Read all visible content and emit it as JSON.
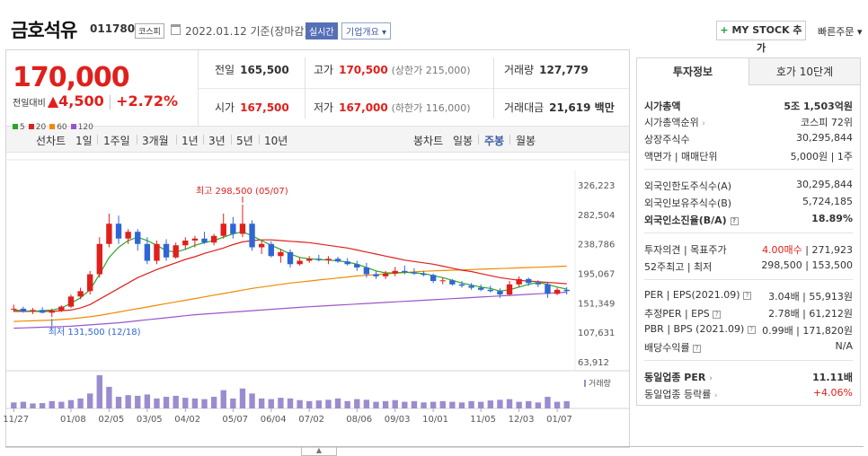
{
  "header": {
    "name": "금호석유",
    "code": "011780",
    "market": "코스피",
    "date": "2022.01.12 기준(장마감)",
    "realtime": "실시간",
    "profile": "기업개요",
    "mystock": "MY STOCK 추가",
    "quickorder": "빠른주문"
  },
  "price": {
    "current": "170,000",
    "change_label": "전일대비",
    "change": "4,500",
    "change_rate": "+2.72%"
  },
  "stats": {
    "prev_label": "전일",
    "prev": "165,500",
    "high_label": "고가",
    "high": "170,500",
    "upper_limit": "(상한가 215,000)",
    "volume_label": "거래량",
    "volume": "127,779",
    "open_label": "시가",
    "open": "167,500",
    "low_label": "저가",
    "low": "167,000",
    "lower_limit": "(하한가 116,000)",
    "amount_label": "거래대금",
    "amount": "21,619 백만"
  },
  "period": {
    "line_chart": "선차트",
    "items": [
      "1일",
      "1주일",
      "3개월",
      "1년",
      "3년",
      "5년",
      "10년"
    ],
    "candle_chart": "봉차트",
    "candle_items": [
      "일봉",
      "주봉",
      "월봉"
    ],
    "selected_candle": "주봉"
  },
  "legend": [
    {
      "label": "5",
      "color": "#2aa52a"
    },
    {
      "label": "20",
      "color": "#e0201c"
    },
    {
      "label": "60",
      "color": "#f08a00"
    },
    {
      "label": "120",
      "color": "#9b55c9"
    }
  ],
  "chart_data": {
    "type": "candlestick",
    "y_ticks": [
      "326,223",
      "282,504",
      "238,786",
      "195,067",
      "151,349",
      "107,631",
      "63,912"
    ],
    "x_ticks": [
      "11/27",
      "01/08",
      "02/05",
      "03/05",
      "04/02",
      "05/07",
      "06/04",
      "07/02",
      "08/06",
      "09/03",
      "10/01",
      "11/05",
      "12/03",
      "01/07"
    ],
    "high_label": "최고 298,500 (05/07)",
    "low_label": "최저 131,500 (12/18)",
    "volume_label": "거래량",
    "ylim": [
      63912,
      326223
    ],
    "up_color": "#e0201c",
    "down_color": "#2f66d6",
    "candles": [
      [
        143000,
        150000,
        139000,
        144000
      ],
      [
        144000,
        147000,
        138000,
        140000
      ],
      [
        140000,
        145000,
        136000,
        142000
      ],
      [
        142000,
        146000,
        137000,
        138000
      ],
      [
        138000,
        144000,
        131500,
        141000
      ],
      [
        141000,
        149000,
        139000,
        147000
      ],
      [
        147000,
        165000,
        145000,
        162000
      ],
      [
        162000,
        175000,
        158000,
        170000
      ],
      [
        170000,
        200000,
        165000,
        195000
      ],
      [
        195000,
        250000,
        190000,
        240000
      ],
      [
        240000,
        285000,
        235000,
        270000
      ],
      [
        270000,
        282000,
        240000,
        248000
      ],
      [
        248000,
        262000,
        240000,
        258000
      ],
      [
        258000,
        262000,
        230000,
        240000
      ],
      [
        240000,
        250000,
        210000,
        215000
      ],
      [
        215000,
        245000,
        210000,
        240000
      ],
      [
        240000,
        247000,
        215000,
        220000
      ],
      [
        220000,
        242000,
        218000,
        238000
      ],
      [
        238000,
        250000,
        232000,
        245000
      ],
      [
        245000,
        252000,
        235000,
        248000
      ],
      [
        248000,
        258000,
        240000,
        242000
      ],
      [
        242000,
        255000,
        238000,
        252000
      ],
      [
        252000,
        285000,
        248000,
        270000
      ],
      [
        270000,
        280000,
        248000,
        255000
      ],
      [
        255000,
        298500,
        250000,
        270000
      ],
      [
        270000,
        275000,
        230000,
        235000
      ],
      [
        235000,
        245000,
        225000,
        240000
      ],
      [
        240000,
        244000,
        220000,
        222000
      ],
      [
        222000,
        232000,
        212000,
        228000
      ],
      [
        228000,
        232000,
        205000,
        210000
      ],
      [
        210000,
        220000,
        208000,
        215000
      ],
      [
        215000,
        222000,
        212000,
        218000
      ],
      [
        218000,
        224000,
        214000,
        216000
      ],
      [
        216000,
        222000,
        210000,
        218000
      ],
      [
        218000,
        221000,
        212000,
        214000
      ],
      [
        214000,
        219000,
        208000,
        210000
      ],
      [
        210000,
        215000,
        200000,
        205000
      ],
      [
        205000,
        212000,
        190000,
        195000
      ],
      [
        195000,
        200000,
        188000,
        192000
      ],
      [
        192000,
        200000,
        188000,
        196000
      ],
      [
        196000,
        206000,
        192000,
        200000
      ],
      [
        200000,
        208000,
        195000,
        198000
      ],
      [
        198000,
        204000,
        194000,
        196000
      ],
      [
        196000,
        200000,
        192000,
        194000
      ],
      [
        194000,
        196000,
        182000,
        185000
      ],
      [
        185000,
        190000,
        180000,
        186000
      ],
      [
        186000,
        188000,
        178000,
        180000
      ],
      [
        180000,
        185000,
        175000,
        178000
      ],
      [
        178000,
        182000,
        172000,
        175000
      ],
      [
        175000,
        180000,
        170000,
        172000
      ],
      [
        172000,
        178000,
        168000,
        170000
      ],
      [
        170000,
        174000,
        160000,
        165000
      ],
      [
        165000,
        185000,
        163000,
        180000
      ],
      [
        180000,
        192000,
        176000,
        188000
      ],
      [
        188000,
        190000,
        178000,
        182000
      ],
      [
        182000,
        186000,
        176000,
        180000
      ],
      [
        180000,
        184000,
        160000,
        166000
      ],
      [
        166000,
        175000,
        164000,
        172000
      ],
      [
        172000,
        176000,
        165000,
        170000
      ]
    ],
    "ma5": [
      142000,
      141000,
      140000,
      141000,
      142000,
      145000,
      152000,
      160000,
      172000,
      195000,
      220000,
      235000,
      245000,
      250000,
      245000,
      238000,
      230000,
      228000,
      232000,
      238000,
      242000,
      245000,
      250000,
      255000,
      258000,
      252000,
      245000,
      238000,
      232000,
      225000,
      220000,
      218000,
      217000,
      216000,
      215000,
      213000,
      210000,
      205000,
      200000,
      197000,
      197000,
      198000,
      197000,
      196000,
      193000,
      190000,
      186000,
      182000,
      179000,
      176000,
      174000,
      170000,
      172000,
      176000,
      180000,
      183000,
      180000,
      176000,
      173000
    ],
    "ma20": [
      140000,
      140000,
      140000,
      140000,
      140000,
      141000,
      142000,
      145000,
      150000,
      158000,
      166000,
      174000,
      182000,
      190000,
      196000,
      202000,
      207000,
      212000,
      217000,
      221000,
      226000,
      230000,
      234000,
      239000,
      243000,
      245000,
      246000,
      246000,
      245000,
      244000,
      243000,
      242000,
      240000,
      238000,
      236000,
      234000,
      231000,
      228000,
      225000,
      222000,
      219000,
      216000,
      214000,
      212000,
      210000,
      207000,
      204000,
      201000,
      199000,
      196000,
      193000,
      190000,
      188000,
      186000,
      185000,
      184000,
      183000,
      182000,
      181000
    ],
    "ma60": [
      125000,
      125500,
      126000,
      126500,
      127000,
      128000,
      129000,
      130500,
      132000,
      134000,
      136500,
      139000,
      141500,
      144000,
      146500,
      149000,
      151500,
      154000,
      156500,
      159000,
      161500,
      164000,
      166500,
      169000,
      171500,
      174000,
      176000,
      178000,
      180000,
      182000,
      183500,
      185000,
      186500,
      188000,
      189500,
      191000,
      192500,
      193500,
      194500,
      195500,
      196500,
      197500,
      198500,
      199500,
      200000,
      200500,
      201000,
      201500,
      202000,
      202500,
      203000,
      203500,
      204000,
      204500,
      205000,
      205500,
      206000,
      206500,
      207000
    ],
    "ma120": [
      115000,
      115500,
      116000,
      116500,
      117000,
      117500,
      118000,
      119000,
      120000,
      121000,
      122000,
      123000,
      124500,
      126000,
      127500,
      129000,
      130500,
      132000,
      133500,
      135000,
      136000,
      137000,
      138000,
      139000,
      140000,
      141000,
      142000,
      143000,
      144000,
      145000,
      146000,
      146800,
      147600,
      148400,
      149200,
      150000,
      150800,
      151600,
      152400,
      153200,
      154000,
      154800,
      155600,
      156400,
      157200,
      158000,
      158800,
      159600,
      160400,
      161200,
      162000,
      162800,
      163600,
      164400,
      165200,
      166000,
      166800,
      167600,
      168400
    ],
    "volume": [
      0.18,
      0.2,
      0.15,
      0.16,
      0.22,
      0.2,
      0.25,
      0.3,
      0.45,
      1.0,
      0.65,
      0.35,
      0.4,
      0.38,
      0.42,
      0.3,
      0.35,
      0.38,
      0.32,
      0.3,
      0.28,
      0.35,
      0.55,
      0.3,
      0.6,
      0.45,
      0.3,
      0.28,
      0.32,
      0.3,
      0.25,
      0.22,
      0.24,
      0.26,
      0.3,
      0.22,
      0.28,
      0.26,
      0.2,
      0.22,
      0.25,
      0.2,
      0.22,
      0.18,
      0.2,
      0.22,
      0.2,
      0.18,
      0.22,
      0.2,
      0.24,
      0.26,
      0.28,
      0.2,
      0.22,
      0.18,
      0.35,
      0.2,
      0.22
    ]
  },
  "right": {
    "tabs": [
      "투자정보",
      "호가 10단계"
    ],
    "mcap_label": "시가총액",
    "mcap": "5조 1,503억원",
    "mcap_rank_label": "시가총액순위",
    "mcap_rank": "코스피 72위",
    "shares_label": "상장주식수",
    "shares": "30,295,844",
    "par_label": "액면가 | 매매단위",
    "par": "5,000원 | 1주",
    "foreign_limit_label": "외국인한도주식수(A)",
    "foreign_limit": "30,295,844",
    "foreign_hold_label": "외국인보유주식수(B)",
    "foreign_hold": "5,724,185",
    "foreign_rate_label": "외국인소진율(B/A)",
    "foreign_rate": "18.89%",
    "opinion_label": "투자의견 | 목표주가",
    "opinion": "4.00매수",
    "target": "271,923",
    "w52_label": "52주최고 | 최저",
    "w52": "298,500 | 153,500",
    "per_label": "PER | EPS(2021.09)",
    "per": "3.04배 | 55,913원",
    "est_per_label": "추정PER | EPS",
    "est_per": "2.78배 | 61,212원",
    "pbr_label": "PBR | BPS (2021.09)",
    "pbr": "0.99배 | 171,820원",
    "div_label": "배당수익률",
    "div": "N/A",
    "ind_per_label": "동일업종 PER",
    "ind_per": "11.11배",
    "ind_rate_label": "동일업종 등락률",
    "ind_rate": "+4.06%"
  }
}
